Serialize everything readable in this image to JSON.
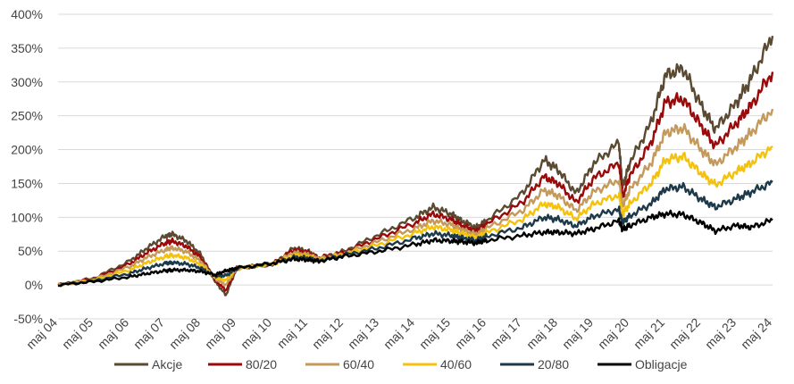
{
  "chart_data": {
    "type": "line",
    "title": "",
    "xlabel": "",
    "ylabel": "",
    "ylim": [
      -50,
      400
    ],
    "grid": "horizontal",
    "legend_position": "bottom",
    "y_ticks": [
      "-50%",
      "0%",
      "50%",
      "100%",
      "150%",
      "200%",
      "250%",
      "300%",
      "350%",
      "400%"
    ],
    "y_tick_values": [
      -50,
      0,
      50,
      100,
      150,
      200,
      250,
      300,
      350,
      400
    ],
    "x_ticks": [
      "maj 04",
      "maj 05",
      "maj 06",
      "maj 07",
      "maj 08",
      "maj 09",
      "maj 10",
      "maj 11",
      "maj 12",
      "maj 13",
      "maj 14",
      "maj 15",
      "maj 16",
      "maj 17",
      "maj 18",
      "maj 19",
      "maj 20",
      "maj 21",
      "maj 22",
      "maj 23",
      "maj 24"
    ],
    "x": [
      2004.4,
      2005.4,
      2006.4,
      2006.9,
      2007.4,
      2007.6,
      2008.0,
      2008.4,
      2008.8,
      2009.1,
      2009.4,
      2010.4,
      2011.0,
      2011.4,
      2011.7,
      2012.4,
      2013.4,
      2014.4,
      2014.9,
      2015.4,
      2015.7,
      2016.1,
      2016.4,
      2017.4,
      2018.0,
      2018.4,
      2018.9,
      2019.4,
      2020.1,
      2020.2,
      2020.4,
      2021.0,
      2021.4,
      2021.9,
      2022.4,
      2022.8,
      2023.4,
      2023.8,
      2024.4
    ],
    "series": [
      {
        "name": "Akcje",
        "color": "#5b4a32",
        "values": [
          0,
          10,
          35,
          55,
          72,
          75,
          65,
          45,
          5,
          -15,
          25,
          30,
          55,
          50,
          40,
          50,
          75,
          100,
          115,
          105,
          95,
          85,
          95,
          135,
          185,
          170,
          135,
          180,
          210,
          145,
          180,
          240,
          310,
          320,
          265,
          230,
          270,
          305,
          368
        ]
      },
      {
        "name": "80/20",
        "color": "#9b0a0a",
        "values": [
          0,
          9,
          31,
          48,
          62,
          65,
          57,
          40,
          7,
          -8,
          25,
          31,
          52,
          48,
          40,
          48,
          70,
          92,
          105,
          97,
          88,
          80,
          90,
          122,
          160,
          150,
          122,
          158,
          180,
          130,
          160,
          210,
          270,
          275,
          235,
          205,
          240,
          265,
          315
        ]
      },
      {
        "name": "60/40",
        "color": "#c49a5c",
        "values": [
          0,
          8,
          27,
          41,
          52,
          55,
          49,
          35,
          9,
          0,
          24,
          31,
          48,
          45,
          39,
          46,
          65,
          84,
          95,
          89,
          82,
          75,
          84,
          110,
          140,
          132,
          110,
          138,
          155,
          117,
          140,
          180,
          225,
          232,
          200,
          178,
          205,
          225,
          260
        ]
      },
      {
        "name": "40/60",
        "color": "#f4c20d",
        "values": [
          0,
          7,
          22,
          33,
          42,
          44,
          40,
          30,
          11,
          7,
          24,
          31,
          44,
          42,
          37,
          45,
          60,
          77,
          86,
          81,
          76,
          70,
          78,
          97,
          120,
          115,
          98,
          120,
          133,
          104,
          120,
          150,
          185,
          190,
          165,
          148,
          168,
          180,
          205
        ]
      },
      {
        "name": "20/80",
        "color": "#1e3a4a",
        "values": [
          0,
          6,
          17,
          25,
          32,
          33,
          31,
          25,
          13,
          14,
          24,
          32,
          41,
          40,
          36,
          44,
          55,
          69,
          76,
          73,
          70,
          66,
          72,
          85,
          100,
          97,
          87,
          102,
          112,
          92,
          102,
          120,
          142,
          145,
          127,
          115,
          128,
          137,
          152
        ]
      },
      {
        "name": "Obligacje",
        "color": "#000000",
        "values": [
          0,
          5,
          12,
          17,
          21,
          22,
          22,
          20,
          15,
          21,
          25,
          32,
          38,
          37,
          35,
          42,
          50,
          60,
          66,
          65,
          64,
          62,
          66,
          73,
          78,
          78,
          76,
          83,
          95,
          82,
          88,
          100,
          105,
          104,
          92,
          80,
          88,
          85,
          96
        ]
      }
    ]
  }
}
